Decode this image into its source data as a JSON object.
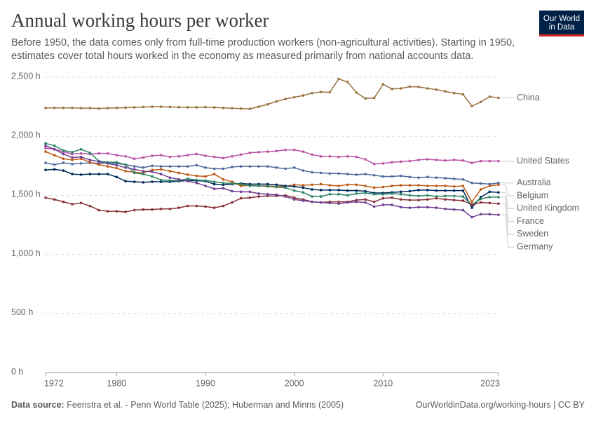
{
  "chart_data": {
    "type": "line",
    "title": "Annual working hours per worker",
    "subtitle": "Before 1950, the data comes only from full-time production workers (non-agricultural activities). Starting in 1950, estimates cover total hours worked in the economy as measured primarily from national accounts data.",
    "logo": [
      "Our World",
      "in Data"
    ],
    "source_label": "Data source:",
    "source": "Feenstra et al. - Penn World Table (2025); Huberman and Minns (2005)",
    "url": "OurWorldinData.org/working-hours | CC BY",
    "grid": true,
    "xlim": [
      1972,
      2023
    ],
    "xticks": [
      1972,
      1980,
      1990,
      2000,
      2010,
      2023
    ],
    "ylim": [
      0,
      2500
    ],
    "yticks": [
      {
        "value": 0,
        "label": "0 h"
      },
      {
        "value": 500,
        "label": "500 h"
      },
      {
        "value": 1000,
        "label": "1,000 h"
      },
      {
        "value": 1500,
        "label": "1,500 h"
      },
      {
        "value": 2000,
        "label": "2,000 h"
      },
      {
        "value": 2500,
        "label": "2,500 h"
      }
    ],
    "x": [
      1972,
      1973,
      1974,
      1975,
      1976,
      1977,
      1978,
      1979,
      1980,
      1981,
      1982,
      1983,
      1984,
      1985,
      1986,
      1987,
      1988,
      1989,
      1990,
      1991,
      1992,
      1993,
      1994,
      1995,
      1996,
      1997,
      1998,
      1999,
      2000,
      2001,
      2002,
      2003,
      2004,
      2005,
      2006,
      2007,
      2008,
      2009,
      2010,
      2011,
      2012,
      2013,
      2014,
      2015,
      2016,
      2017,
      2018,
      2019,
      2020,
      2021,
      2022,
      2023
    ],
    "series": [
      {
        "name": "China",
        "color": "#9a7340",
        "values": [
          2240,
          2240,
          2240,
          2240,
          2238,
          2238,
          2235,
          2238,
          2240,
          2242,
          2245,
          2248,
          2250,
          2250,
          2248,
          2246,
          2245,
          2245,
          2247,
          2244,
          2240,
          2237,
          2234,
          2232,
          2250,
          2270,
          2295,
          2315,
          2330,
          2345,
          2365,
          2375,
          2372,
          2485,
          2460,
          2370,
          2320,
          2325,
          2440,
          2400,
          2405,
          2420,
          2418,
          2405,
          2395,
          2380,
          2365,
          2355,
          2255,
          2290,
          2335,
          2325
        ]
      },
      {
        "name": "United States",
        "color": "#b953a6",
        "values": [
          1900,
          1890,
          1870,
          1850,
          1855,
          1850,
          1855,
          1855,
          1840,
          1830,
          1810,
          1820,
          1835,
          1840,
          1825,
          1830,
          1840,
          1850,
          1835,
          1825,
          1815,
          1830,
          1845,
          1860,
          1865,
          1870,
          1875,
          1885,
          1885,
          1870,
          1845,
          1830,
          1830,
          1825,
          1830,
          1825,
          1805,
          1765,
          1770,
          1780,
          1785,
          1790,
          1800,
          1805,
          1800,
          1795,
          1800,
          1795,
          1775,
          1790,
          1790,
          1790
        ]
      },
      {
        "name": "Australia",
        "color": "#4c6a9c",
        "values": [
          1775,
          1760,
          1775,
          1765,
          1770,
          1775,
          1770,
          1775,
          1770,
          1760,
          1745,
          1735,
          1750,
          1745,
          1745,
          1745,
          1745,
          1755,
          1735,
          1725,
          1725,
          1740,
          1745,
          1745,
          1745,
          1745,
          1735,
          1725,
          1735,
          1710,
          1695,
          1690,
          1685,
          1685,
          1680,
          1675,
          1680,
          1670,
          1660,
          1660,
          1665,
          1655,
          1650,
          1655,
          1650,
          1645,
          1640,
          1635,
          1605,
          1600,
          1595,
          1605
        ]
      },
      {
        "name": "Belgium",
        "color": "#be5915",
        "values": [
          1870,
          1840,
          1810,
          1800,
          1810,
          1780,
          1760,
          1745,
          1730,
          1705,
          1695,
          1690,
          1715,
          1720,
          1705,
          1690,
          1675,
          1665,
          1660,
          1680,
          1635,
          1615,
          1580,
          1585,
          1580,
          1580,
          1575,
          1575,
          1590,
          1585,
          1590,
          1595,
          1585,
          1580,
          1590,
          1590,
          1580,
          1565,
          1570,
          1580,
          1585,
          1585,
          1585,
          1580,
          1580,
          1580,
          1575,
          1580,
          1445,
          1550,
          1580,
          1590
        ]
      },
      {
        "name": "United Kingdom",
        "color": "#00295b",
        "values": [
          1715,
          1720,
          1710,
          1680,
          1675,
          1680,
          1680,
          1680,
          1655,
          1620,
          1615,
          1610,
          1615,
          1615,
          1615,
          1620,
          1625,
          1625,
          1620,
          1595,
          1590,
          1595,
          1600,
          1595,
          1595,
          1595,
          1590,
          1580,
          1575,
          1565,
          1550,
          1545,
          1545,
          1545,
          1540,
          1540,
          1535,
          1520,
          1520,
          1525,
          1530,
          1535,
          1545,
          1545,
          1540,
          1540,
          1540,
          1540,
          1395,
          1485,
          1530,
          1525
        ]
      },
      {
        "name": "France",
        "color": "#2c8465",
        "values": [
          1940,
          1920,
          1880,
          1865,
          1890,
          1860,
          1790,
          1780,
          1780,
          1760,
          1690,
          1680,
          1660,
          1630,
          1625,
          1625,
          1640,
          1630,
          1625,
          1615,
          1605,
          1600,
          1595,
          1580,
          1580,
          1575,
          1570,
          1565,
          1540,
          1525,
          1490,
          1490,
          1510,
          1510,
          1500,
          1515,
          1520,
          1510,
          1510,
          1515,
          1510,
          1500,
          1495,
          1500,
          1490,
          1495,
          1495,
          1490,
          1420,
          1470,
          1485,
          1485
        ]
      },
      {
        "name": "Sweden",
        "color": "#883039",
        "values": [
          1480,
          1465,
          1445,
          1425,
          1435,
          1410,
          1375,
          1365,
          1365,
          1360,
          1375,
          1380,
          1380,
          1385,
          1385,
          1395,
          1410,
          1410,
          1405,
          1395,
          1410,
          1440,
          1475,
          1480,
          1490,
          1495,
          1495,
          1500,
          1480,
          1465,
          1445,
          1440,
          1445,
          1445,
          1445,
          1460,
          1465,
          1445,
          1475,
          1480,
          1465,
          1460,
          1460,
          1465,
          1475,
          1465,
          1460,
          1455,
          1420,
          1440,
          1435,
          1430
        ]
      },
      {
        "name": "Germany",
        "color": "#6d3e91",
        "values": [
          1920,
          1890,
          1850,
          1820,
          1825,
          1800,
          1785,
          1770,
          1755,
          1735,
          1720,
          1705,
          1700,
          1680,
          1650,
          1635,
          1620,
          1605,
          1580,
          1555,
          1560,
          1535,
          1530,
          1530,
          1515,
          1510,
          1505,
          1490,
          1465,
          1455,
          1445,
          1440,
          1435,
          1430,
          1440,
          1445,
          1440,
          1405,
          1420,
          1420,
          1400,
          1395,
          1400,
          1400,
          1395,
          1385,
          1380,
          1375,
          1315,
          1340,
          1340,
          1335
        ]
      }
    ]
  }
}
